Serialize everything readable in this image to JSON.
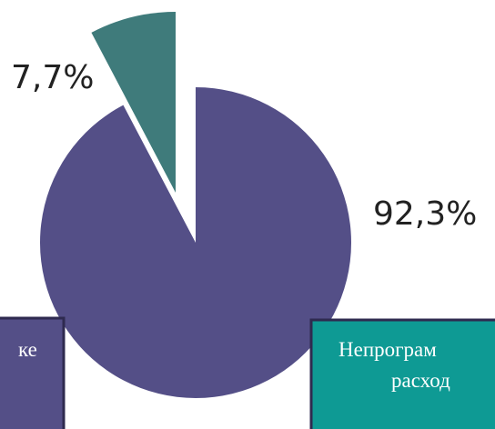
{
  "chart_data": {
    "type": "pie",
    "categories": [
      [
        "ке"
      ],
      [
        "Непрограм",
        "расход"
      ]
    ],
    "values": [
      92.3,
      7.7
    ],
    "value_labels": [
      "92,3%",
      "7,7%"
    ],
    "colors": [
      "#544f87",
      "#3f7b7b"
    ],
    "legend_colors": [
      "#544f87",
      "#0e9a94"
    ]
  }
}
